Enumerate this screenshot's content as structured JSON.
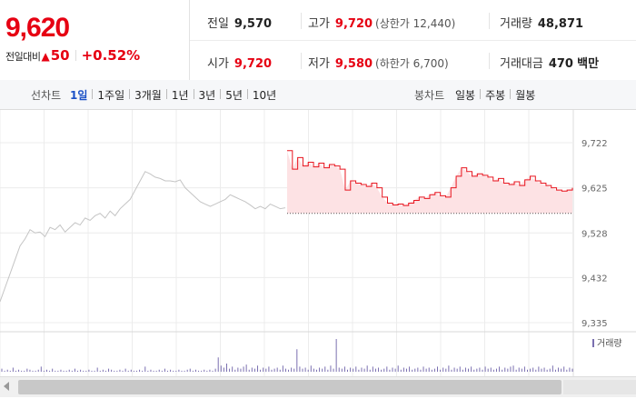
{
  "quote": {
    "price": "9,620",
    "change_label": "전일대비",
    "change_arrow": "▲",
    "change_amount": "50",
    "change_percent": "+0.52%",
    "prev_close_label": "전일",
    "prev_close": "9,570",
    "high_label": "고가",
    "high": "9,720",
    "upper_limit": "(상한가 12,440)",
    "volume_label": "거래량",
    "volume": "48,871",
    "open_label": "시가",
    "open": "9,720",
    "low_label": "저가",
    "low": "9,580",
    "lower_limit": "(하한가 6,700)",
    "amount_label": "거래대금",
    "amount": "470",
    "amount_unit": "백만"
  },
  "toolbar": {
    "line_chart_label": "선차트",
    "line_periods": [
      {
        "label": "1일",
        "active": true
      },
      {
        "label": "1주일",
        "active": false
      },
      {
        "label": "3개월",
        "active": false
      },
      {
        "label": "1년",
        "active": false
      },
      {
        "label": "3년",
        "active": false
      },
      {
        "label": "5년",
        "active": false
      },
      {
        "label": "10년",
        "active": false
      }
    ],
    "candle_chart_label": "봉차트",
    "candle_periods": [
      {
        "label": "일봉",
        "active": false
      },
      {
        "label": "주봉",
        "active": false
      },
      {
        "label": "월봉",
        "active": false
      }
    ]
  },
  "chart_data": {
    "type": "line",
    "yticks": [
      "9,722",
      "9,625",
      "9,528",
      "9,432",
      "9,335"
    ],
    "ylim": [
      9335,
      9722
    ],
    "baseline": 9570,
    "legend": "거래량",
    "colors": {
      "today": "#e8141e",
      "today_fill": "#fde2e4",
      "prev": "#c4c4c4",
      "volume": "#7a6fb0",
      "grid": "#ececec"
    },
    "prev_day_series": [
      9380,
      9410,
      9440,
      9470,
      9500,
      9515,
      9535,
      9528,
      9530,
      9520,
      9540,
      9535,
      9545,
      9530,
      9540,
      9550,
      9545,
      9560,
      9555,
      9565,
      9570,
      9560,
      9575,
      9565,
      9580,
      9590,
      9600,
      9620,
      9640,
      9660,
      9655,
      9648,
      9645,
      9640,
      9640,
      9638,
      9642,
      9625,
      9615,
      9605,
      9595,
      9590,
      9585,
      9590,
      9595,
      9600,
      9610,
      9605,
      9600,
      9595,
      9588,
      9580,
      9585,
      9580,
      9590,
      9585,
      9580,
      9582
    ],
    "today_series": [
      9705,
      9665,
      9690,
      9672,
      9680,
      9670,
      9678,
      9668,
      9675,
      9672,
      9665,
      9620,
      9640,
      9635,
      9632,
      9628,
      9635,
      9625,
      9605,
      9592,
      9588,
      9590,
      9587,
      9592,
      9598,
      9605,
      9602,
      9610,
      9615,
      9608,
      9605,
      9625,
      9650,
      9668,
      9660,
      9650,
      9655,
      9652,
      9648,
      9640,
      9645,
      9635,
      9632,
      9638,
      9630,
      9642,
      9650,
      9640,
      9635,
      9630,
      9625,
      9620,
      9618,
      9620,
      9625
    ],
    "volume_series": [
      3,
      1,
      2,
      1,
      4,
      1,
      2,
      1,
      1,
      3,
      2,
      1,
      1,
      2,
      5,
      1,
      2,
      1,
      3,
      1,
      1,
      2,
      1,
      1,
      2,
      1,
      3,
      1,
      2,
      1,
      1,
      2,
      1,
      1,
      4,
      1,
      2,
      1,
      3,
      2,
      1,
      1,
      2,
      1,
      3,
      1,
      2,
      1,
      1,
      2,
      1,
      5,
      1,
      2,
      1,
      1,
      2,
      1,
      3,
      1,
      2,
      1,
      1,
      2,
      1,
      1,
      2,
      3,
      1,
      2,
      1,
      1,
      2,
      1,
      2,
      1,
      3,
      14,
      6,
      4,
      8,
      3,
      5,
      2,
      4,
      3,
      5,
      7,
      2,
      4,
      3,
      6,
      2,
      4,
      3,
      5,
      2,
      3,
      4,
      2,
      6,
      3,
      2,
      4,
      3,
      22,
      5,
      3,
      4,
      2,
      6,
      3,
      2,
      4,
      3,
      5,
      2,
      6,
      3,
      32,
      4,
      3,
      5,
      2,
      4,
      3,
      5,
      2,
      4,
      3,
      6,
      2,
      5,
      3,
      4,
      2,
      3,
      5,
      2,
      4,
      3,
      6,
      2,
      4,
      3,
      5,
      2,
      3,
      4,
      2,
      5,
      3,
      4,
      2,
      3,
      5,
      2,
      4,
      3,
      6,
      2,
      4,
      3,
      5,
      2,
      4,
      3,
      5,
      2,
      3,
      4,
      2,
      5,
      3,
      4,
      2,
      3,
      5,
      2,
      4,
      3,
      5,
      6,
      2,
      4,
      3,
      5,
      2,
      3,
      4,
      2,
      5,
      3,
      4,
      2,
      3,
      6,
      2,
      4,
      3,
      5,
      2,
      4,
      3
    ]
  }
}
